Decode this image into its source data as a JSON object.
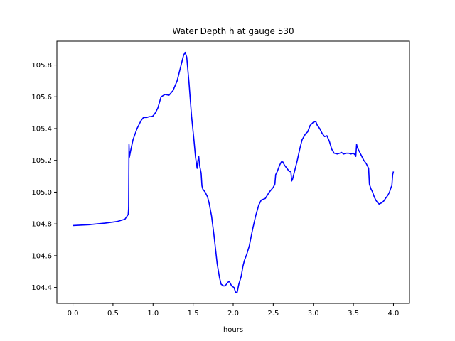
{
  "chart_data": {
    "type": "line",
    "title": "Water Depth h at gauge 530",
    "xlabel": "hours",
    "ylabel": "",
    "xlim": [
      -0.2,
      4.2
    ],
    "ylim": [
      104.3,
      105.95
    ],
    "grid": false,
    "x_ticks": [
      0.0,
      0.5,
      1.0,
      1.5,
      2.0,
      2.5,
      3.0,
      3.5,
      4.0
    ],
    "x_tick_labels": [
      "0.0",
      "0.5",
      "1.0",
      "1.5",
      "2.0",
      "2.5",
      "3.0",
      "3.5",
      "4.0"
    ],
    "y_ticks": [
      104.4,
      104.6,
      104.8,
      105.0,
      105.2,
      105.4,
      105.6,
      105.8
    ],
    "y_tick_labels": [
      "104.4",
      "104.6",
      "104.8",
      "105.0",
      "105.2",
      "105.4",
      "105.6",
      "105.8"
    ],
    "series": [
      {
        "color": "#0000ff",
        "x": [
          0.0,
          0.2,
          0.4,
          0.55,
          0.65,
          0.69,
          0.695,
          0.7,
          0.705,
          0.72,
          0.75,
          0.8,
          0.85,
          0.88,
          0.92,
          0.95,
          0.98,
          1.0,
          1.03,
          1.06,
          1.1,
          1.15,
          1.2,
          1.25,
          1.3,
          1.35,
          1.38,
          1.4,
          1.42,
          1.45,
          1.48,
          1.51,
          1.53,
          1.55,
          1.56,
          1.57,
          1.58,
          1.6,
          1.61,
          1.62,
          1.65,
          1.68,
          1.7,
          1.73,
          1.76,
          1.8,
          1.83,
          1.85,
          1.88,
          1.9,
          1.93,
          1.95,
          1.98,
          2.01,
          2.03,
          2.05,
          2.07,
          2.1,
          2.12,
          2.14,
          2.17,
          2.2,
          2.24,
          2.28,
          2.32,
          2.35,
          2.4,
          2.45,
          2.5,
          2.52,
          2.53,
          2.55,
          2.58,
          2.6,
          2.62,
          2.64,
          2.67,
          2.7,
          2.72,
          2.73,
          2.74,
          2.75,
          2.77,
          2.8,
          2.83,
          2.86,
          2.9,
          2.93,
          2.96,
          3.0,
          3.03,
          3.05,
          3.08,
          3.11,
          3.14,
          3.17,
          3.2,
          3.23,
          3.26,
          3.3,
          3.33,
          3.35,
          3.38,
          3.41,
          3.44,
          3.47,
          3.5,
          3.52,
          3.53,
          3.54,
          3.55,
          3.57,
          3.6,
          3.63,
          3.66,
          3.69,
          3.7,
          3.72,
          3.74,
          3.76,
          3.78,
          3.8,
          3.82,
          3.84,
          3.86,
          3.88,
          3.9,
          3.93,
          3.95,
          3.97,
          3.98,
          3.99,
          4.0
        ],
        "y": [
          104.79,
          104.795,
          104.805,
          104.815,
          104.83,
          104.86,
          104.9,
          105.3,
          105.22,
          105.26,
          105.33,
          105.4,
          105.45,
          105.47,
          105.47,
          105.475,
          105.475,
          105.48,
          105.5,
          105.53,
          105.6,
          105.615,
          105.61,
          105.64,
          105.7,
          105.8,
          105.86,
          105.88,
          105.85,
          105.68,
          105.48,
          105.33,
          105.22,
          105.15,
          105.2,
          105.225,
          105.17,
          105.12,
          105.04,
          105.02,
          105.0,
          104.97,
          104.93,
          104.85,
          104.73,
          104.55,
          104.46,
          104.42,
          104.41,
          104.41,
          104.43,
          104.44,
          104.41,
          104.4,
          104.37,
          104.37,
          104.42,
          104.47,
          104.53,
          104.57,
          104.61,
          104.66,
          104.76,
          104.85,
          104.92,
          104.95,
          104.96,
          105.0,
          105.03,
          105.05,
          105.11,
          105.13,
          105.17,
          105.19,
          105.19,
          105.17,
          105.15,
          105.13,
          105.13,
          105.07,
          105.08,
          105.1,
          105.14,
          105.2,
          105.27,
          105.33,
          105.365,
          105.38,
          105.42,
          105.44,
          105.445,
          105.42,
          105.4,
          105.37,
          105.35,
          105.355,
          105.32,
          105.27,
          105.245,
          105.24,
          105.245,
          105.25,
          105.24,
          105.245,
          105.245,
          105.24,
          105.245,
          105.235,
          105.225,
          105.3,
          105.28,
          105.26,
          105.23,
          105.2,
          105.18,
          105.15,
          105.05,
          105.02,
          105.0,
          104.97,
          104.95,
          104.935,
          104.925,
          104.93,
          104.935,
          104.945,
          104.96,
          104.98,
          105.0,
          105.03,
          105.04,
          105.11,
          105.13
        ]
      }
    ]
  }
}
